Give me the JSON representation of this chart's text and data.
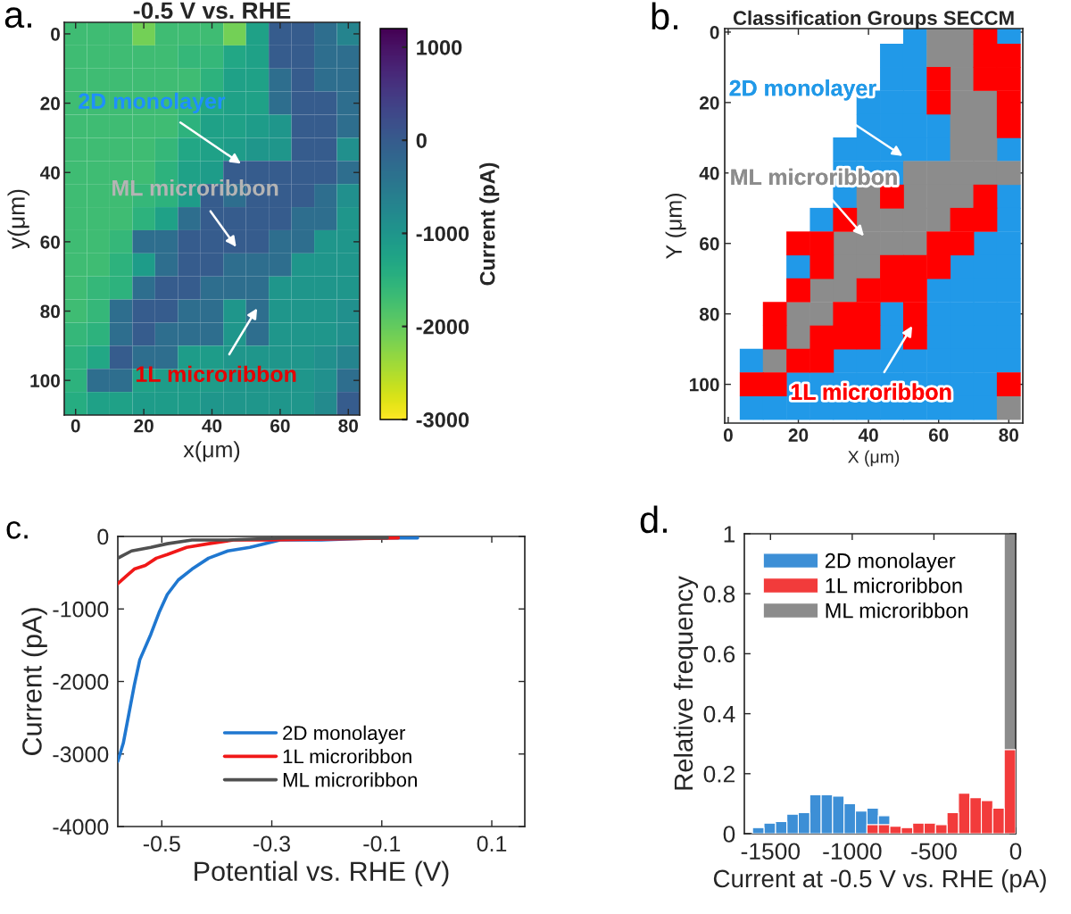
{
  "chart_data": [
    {
      "type": "heatmap",
      "title": "-0.5 V vs. RHE",
      "xlabel": "x(μm)",
      "ylabel": "y(μm)",
      "clabel": "Current (pA)",
      "categories": [
        "0",
        null,
        null,
        "20",
        null,
        null,
        "40",
        null,
        null,
        "60",
        null,
        null,
        "80"
      ],
      "y_categories": [
        "0",
        null,
        null,
        "20",
        null,
        null,
        "40",
        null,
        null,
        "60",
        null,
        null,
        "80",
        null,
        null,
        "100",
        null
      ],
      "cells": [
        [
          -1700,
          -1700,
          -1700,
          -2100,
          -1700,
          -1700,
          -1700,
          -2100,
          -1200,
          0,
          0,
          -300,
          -700
        ],
        [
          -1700,
          -1700,
          -1700,
          -1700,
          -1700,
          -1600,
          -1600,
          -1300,
          -1200,
          0,
          0,
          -300,
          -300
        ],
        [
          -1700,
          -1700,
          -1700,
          -1700,
          -1700,
          -1700,
          -1500,
          -1200,
          -1200,
          -300,
          0,
          -300,
          -300
        ],
        [
          -1700,
          -1700,
          -1700,
          -1700,
          -1700,
          -1600,
          -1300,
          -1200,
          -1200,
          -300,
          0,
          0,
          -300
        ],
        [
          -1700,
          -1700,
          -1700,
          -1700,
          -1700,
          -1500,
          -1200,
          -1200,
          -1100,
          -1000,
          0,
          0,
          -300
        ],
        [
          -1700,
          -1700,
          -1700,
          -1700,
          -1600,
          -1300,
          -1200,
          -1100,
          -1000,
          -1000,
          0,
          0,
          -900
        ],
        [
          -1700,
          -1700,
          -1700,
          -1700,
          -1500,
          -1200,
          -1100,
          0,
          0,
          0,
          0,
          0,
          -300
        ],
        [
          -1700,
          -1700,
          -1700,
          -1600,
          -1500,
          -1100,
          0,
          -300,
          0,
          0,
          0,
          -300,
          -900
        ],
        [
          -1700,
          -1700,
          -1700,
          -1500,
          -1200,
          -300,
          0,
          0,
          0,
          0,
          -300,
          -300,
          -1000
        ],
        [
          -1700,
          -1700,
          -1600,
          -300,
          -300,
          0,
          0,
          0,
          0,
          -300,
          -300,
          -1000,
          -1000
        ],
        [
          -1700,
          -1700,
          -1500,
          -1100,
          -300,
          0,
          0,
          -300,
          -300,
          -300,
          -1000,
          -1000,
          -1000
        ],
        [
          -1700,
          -1600,
          -1500,
          -300,
          0,
          0,
          -300,
          -300,
          -300,
          -1000,
          -1000,
          -1000,
          -1000
        ],
        [
          -1700,
          -1600,
          -300,
          0,
          0,
          -300,
          -300,
          -1000,
          -300,
          -1000,
          -1000,
          -1000,
          -900
        ],
        [
          -1600,
          -1500,
          -300,
          0,
          -300,
          -300,
          -300,
          -1000,
          -300,
          -1000,
          -1000,
          -1000,
          -900
        ],
        [
          -1500,
          -1300,
          0,
          -300,
          -300,
          -1100,
          -1100,
          -1000,
          -1000,
          -1000,
          -1000,
          -900,
          -700
        ],
        [
          -1500,
          -300,
          -300,
          -1200,
          -1100,
          -1100,
          -1100,
          -1000,
          -1000,
          -1000,
          -1000,
          -900,
          -300
        ],
        [
          -1400,
          -1200,
          -1200,
          -1100,
          -1100,
          -1100,
          -1000,
          -1000,
          -1000,
          -1000,
          -1000,
          -800,
          0
        ]
      ],
      "clim": [
        -3000,
        1200
      ],
      "cticks": [
        -3000,
        -2000,
        -1000,
        0,
        1000
      ],
      "annotations": [
        "a.",
        "2D monolayer",
        "ML microribbon",
        "1L microribbon"
      ]
    },
    {
      "type": "scatter",
      "title": "Classification Groups SECCM",
      "xlabel": "X (μm)",
      "ylabel": "Y (μm)",
      "marker": "square",
      "xlim": [
        -1,
        84
      ],
      "ylim": [
        111,
        -1
      ],
      "xticks": [
        0,
        20,
        40,
        60,
        80
      ],
      "yticks": [
        0,
        20,
        40,
        60,
        80,
        100
      ],
      "series": [
        {
          "name": "2D monolayer",
          "color": "#2199e8",
          "x": [
            53.3,
            80,
            46.7,
            53.3,
            46.7,
            53.3,
            40,
            46.7,
            53.3,
            40,
            46.7,
            53.3,
            60,
            33.3,
            40,
            46.7,
            53.3,
            60,
            80,
            33.3,
            40,
            46.7,
            33.3,
            80,
            26.7,
            80,
            73.3,
            80,
            20,
            66.7,
            73.3,
            80,
            60,
            66.7,
            73.3,
            80,
            46.7,
            60,
            66.7,
            73.3,
            80,
            46.7,
            60,
            66.7,
            73.3,
            80,
            6.7,
            33.3,
            40,
            46.7,
            53.3,
            60,
            66.7,
            73.3,
            80,
            20,
            26.7,
            33.3,
            40,
            46.7,
            53.3,
            60,
            66.7,
            73.3,
            6.7,
            13.3,
            20,
            26.7,
            33.3,
            40,
            46.7,
            53.3,
            60,
            66.7,
            73.3
          ],
          "values": [
            0,
            0,
            6.7,
            6.7,
            13.3,
            13.3,
            20,
            20,
            20,
            26.7,
            26.7,
            26.7,
            26.7,
            33.3,
            33.3,
            33.3,
            33.3,
            33.3,
            33.3,
            40,
            40,
            40,
            46.7,
            46.7,
            53.3,
            53.3,
            60,
            60,
            66.7,
            66.7,
            66.7,
            66.7,
            73.3,
            73.3,
            73.3,
            73.3,
            80,
            80,
            80,
            80,
            80,
            86.7,
            86.7,
            86.7,
            86.7,
            86.7,
            93.3,
            93.3,
            93.3,
            93.3,
            93.3,
            93.3,
            93.3,
            93.3,
            93.3,
            100,
            100,
            100,
            100,
            100,
            100,
            100,
            100,
            100,
            106.7,
            106.7,
            106.7,
            106.7,
            106.7,
            106.7,
            106.7,
            106.7,
            106.7,
            106.7,
            106.7
          ]
        },
        {
          "name": "ML microribbon",
          "color": "#8c8c8c",
          "x": [
            60,
            66.7,
            60,
            66.7,
            66.7,
            66.7,
            73.3,
            66.7,
            73.3,
            66.7,
            73.3,
            53.3,
            60,
            66.7,
            73.3,
            80,
            40,
            53.3,
            60,
            66.7,
            40,
            46.7,
            53.3,
            60,
            33.3,
            40,
            46.7,
            53.3,
            33.3,
            40,
            26.7,
            33.3,
            20,
            26.7,
            20,
            13.3,
            80
          ],
          "values": [
            0,
            0,
            6.7,
            6.7,
            13.3,
            20,
            20,
            26.7,
            26.7,
            33.3,
            33.3,
            40,
            40,
            40,
            40,
            40,
            46.7,
            46.7,
            46.7,
            46.7,
            53.3,
            53.3,
            53.3,
            53.3,
            60,
            60,
            60,
            60,
            66.7,
            66.7,
            73.3,
            73.3,
            80,
            80,
            86.7,
            93.3,
            106.7
          ]
        },
        {
          "name": "1L microribbon",
          "color": "#ff0000",
          "x": [
            73.3,
            73.3,
            80,
            60,
            73.3,
            80,
            60,
            80,
            80,
            46.7,
            73.3,
            33.3,
            66.7,
            73.3,
            20,
            26.7,
            60,
            66.7,
            26.7,
            46.7,
            53.3,
            60,
            20,
            40,
            46.7,
            53.3,
            13.3,
            33.3,
            40,
            53.3,
            13.3,
            26.7,
            33.3,
            40,
            53.3,
            20,
            26.7,
            6.7,
            13.3,
            80
          ],
          "values": [
            0,
            6.7,
            6.7,
            13.3,
            13.3,
            13.3,
            20,
            20,
            26.7,
            46.7,
            46.7,
            53.3,
            53.3,
            53.3,
            60,
            60,
            60,
            60,
            66.7,
            66.7,
            66.7,
            66.7,
            73.3,
            73.3,
            73.3,
            73.3,
            80,
            80,
            80,
            80,
            86.7,
            86.7,
            86.7,
            86.7,
            86.7,
            93.3,
            93.3,
            100,
            100,
            100
          ]
        }
      ],
      "annotations": [
        "b."
      ]
    },
    {
      "type": "line",
      "xlabel": "Potential vs. RHE (V)",
      "ylabel": "Current (pA)",
      "legend": "bottom",
      "series": [
        {
          "name": "2D monolayer",
          "color": "#1f77d0",
          "x": [
            -0.58,
            -0.57,
            -0.56,
            -0.55,
            -0.54,
            -0.52,
            -0.505,
            -0.49,
            -0.47,
            -0.445,
            -0.415,
            -0.38,
            -0.34,
            -0.285,
            -0.21,
            -0.11,
            -0.035
          ],
          "values": [
            -3100,
            -2850,
            -2450,
            -2050,
            -1700,
            -1350,
            -1050,
            -800,
            -600,
            -450,
            -300,
            -200,
            -150,
            -50,
            -50,
            -20,
            -20
          ]
        },
        {
          "name": "1L microribbon",
          "color": "#f01818",
          "x": [
            -0.58,
            -0.565,
            -0.55,
            -0.53,
            -0.51,
            -0.49,
            -0.455,
            -0.415,
            -0.37,
            -0.305,
            -0.07
          ],
          "values": [
            -650,
            -550,
            -450,
            -400,
            -300,
            -250,
            -150,
            -100,
            -50,
            -50,
            -20
          ]
        },
        {
          "name": "ML microribbon",
          "color": "#505050",
          "x": [
            -0.58,
            -0.555,
            -0.52,
            -0.49,
            -0.445,
            -0.38,
            -0.275,
            -0.09
          ],
          "values": [
            -300,
            -200,
            -150,
            -100,
            -50,
            -50,
            -20,
            -20
          ]
        }
      ],
      "xlim": [
        -0.58,
        0.16
      ],
      "ylim": [
        -4000,
        0
      ],
      "xticks": [
        -0.5,
        -0.3,
        -0.1,
        0.1
      ],
      "yticks": [
        -4000,
        -3000,
        -2000,
        -1000,
        0
      ],
      "annotations": [
        "c."
      ]
    },
    {
      "type": "histogram",
      "xlabel": "Current at -0.5 V vs. RHE (pA)",
      "ylabel": "Relative frequency",
      "legend": "top left",
      "bins": [
        -1610,
        -1540,
        -1470,
        -1400,
        -1330,
        -1260,
        -1190,
        -1120,
        -1050,
        -980,
        -910,
        -840,
        -770,
        -700,
        -630,
        -560,
        -490,
        -420,
        -350,
        -280,
        -210,
        -140,
        -70,
        0
      ],
      "series": [
        {
          "name": "2D monolayer",
          "color": "#3d8fd6",
          "values": [
            0.02,
            0.035,
            0.04,
            0.065,
            0.07,
            0.13,
            0.13,
            0.125,
            0.1,
            0.075,
            0.085,
            0.06,
            0,
            0,
            0,
            0,
            0,
            0,
            0,
            0,
            0,
            0,
            0
          ]
        },
        {
          "name": "1L microribbon",
          "color": "#f23b3b",
          "values": [
            0,
            0,
            0,
            0,
            0,
            0,
            0,
            0,
            0,
            0,
            0.03,
            0.03,
            0.025,
            0.02,
            0.035,
            0.035,
            0.03,
            0.07,
            0.135,
            0.12,
            0.11,
            0.085,
            0.28
          ]
        },
        {
          "name": "ML microribbon",
          "color": "#8c8c8c",
          "values": [
            0,
            0,
            0,
            0,
            0,
            0,
            0,
            0,
            0,
            0,
            0,
            0,
            0,
            0,
            0,
            0,
            0,
            0,
            0,
            0,
            0,
            0,
            1
          ]
        }
      ],
      "xlim": [
        -1660,
        0
      ],
      "ylim": [
        0,
        1
      ],
      "xticks": [
        -1500,
        -1000,
        -500,
        0
      ],
      "yticks": [
        0,
        0.2,
        0.4,
        0.6,
        0.8,
        1
      ],
      "annotations": [
        "d."
      ]
    }
  ]
}
